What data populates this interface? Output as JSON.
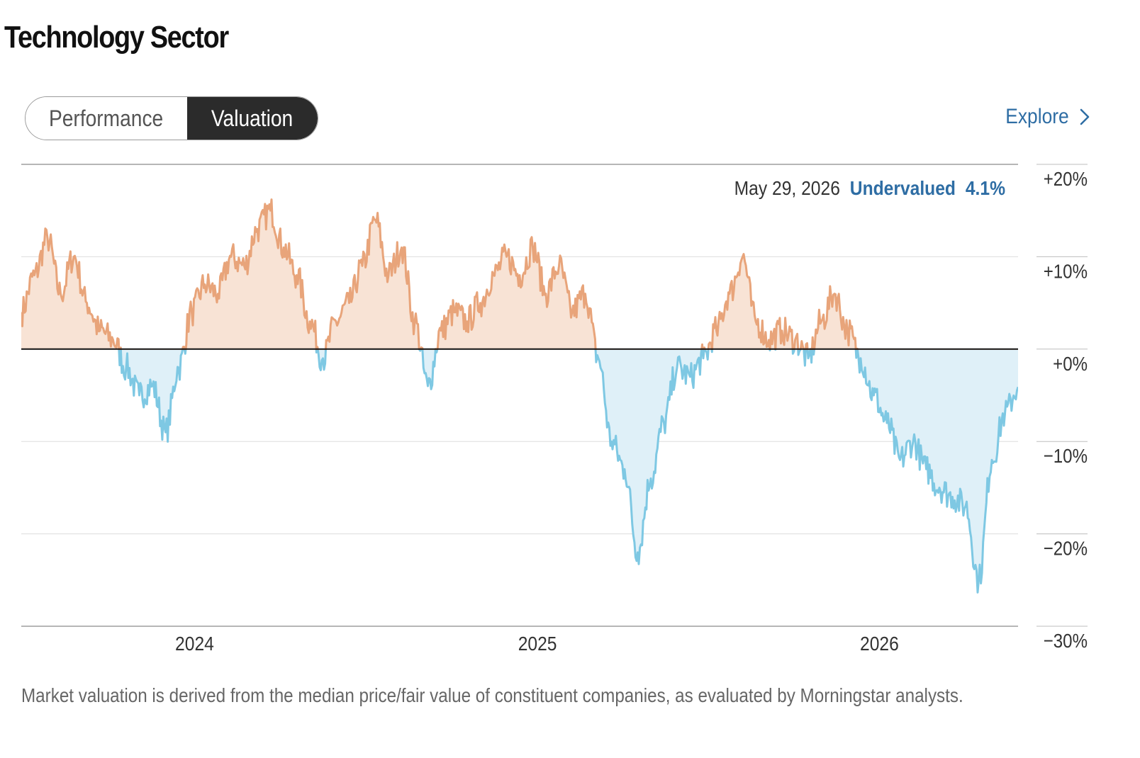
{
  "title": "Technology Sector",
  "tabs": [
    {
      "label": "Performance",
      "active": false
    },
    {
      "label": "Valuation",
      "active": true
    }
  ],
  "explore": {
    "label": "Explore",
    "icon": "chevron-right-icon"
  },
  "caption": "Market valuation is derived from the median price/fair value of constituent companies, as evaluated by Morningstar analysts.",
  "chart_data": {
    "type": "area",
    "title": "",
    "xlabel": "",
    "ylabel": "",
    "ylim": [
      -30,
      20
    ],
    "y_ticks": [
      20,
      10,
      0,
      -10,
      -20,
      -30
    ],
    "y_tick_labels": [
      "+20%",
      "+10%",
      "+0%",
      "−10%",
      "−20%",
      "−30%"
    ],
    "x_tick_labels": [
      {
        "label": "2024",
        "x": "2024-01-01"
      },
      {
        "label": "2025",
        "x": "2025-01-01"
      },
      {
        "label": "2026",
        "x": "2026-01-01"
      }
    ],
    "xlim": [
      "2023-06-30",
      "2026-05-29"
    ],
    "annotation": {
      "date": "May 29, 2026",
      "status": "Undervalued",
      "value": "4.1%"
    },
    "colors": {
      "positive": "#e8a47a",
      "positive_fill": "#f8e3d5",
      "negative": "#7ec8e3",
      "negative_fill": "#dff0f8",
      "annotation": "#2e6da4",
      "zero_line": "#111111"
    },
    "series": [
      {
        "x": [
          "2023-06-30",
          "2023-07-14",
          "2023-07-28",
          "2023-08-11",
          "2023-08-25",
          "2023-09-08",
          "2023-09-22",
          "2023-10-06",
          "2023-10-20",
          "2023-11-03",
          "2023-11-17",
          "2023-12-01",
          "2023-12-15",
          "2023-12-29",
          "2024-01-12",
          "2024-01-26",
          "2024-02-09",
          "2024-02-23",
          "2024-03-08",
          "2024-03-22",
          "2024-04-05",
          "2024-04-19",
          "2024-05-03",
          "2024-05-17",
          "2024-05-31",
          "2024-06-14",
          "2024-06-28",
          "2024-07-12",
          "2024-07-26",
          "2024-08-09",
          "2024-08-23",
          "2024-09-06",
          "2024-09-20",
          "2024-10-04",
          "2024-10-18",
          "2024-11-01",
          "2024-11-15",
          "2024-11-29",
          "2024-12-13",
          "2024-12-27",
          "2025-01-10",
          "2025-01-24",
          "2025-02-07",
          "2025-02-21",
          "2025-03-07",
          "2025-03-21",
          "2025-04-04",
          "2025-04-18",
          "2025-05-02",
          "2025-05-16",
          "2025-05-30",
          "2025-06-13",
          "2025-06-27",
          "2025-07-11",
          "2025-07-25",
          "2025-08-08",
          "2025-08-22",
          "2025-09-05",
          "2025-09-19",
          "2025-10-03",
          "2025-10-17",
          "2025-10-31",
          "2025-11-14",
          "2025-11-28",
          "2025-12-12",
          "2025-12-26",
          "2026-01-09",
          "2026-01-23",
          "2026-02-06",
          "2026-02-20",
          "2026-03-06",
          "2026-03-20",
          "2026-04-03",
          "2026-04-17",
          "2026-05-01",
          "2026-05-15",
          "2026-05-29"
        ],
        "y": [
          4,
          8,
          12,
          6,
          10,
          5,
          2,
          1,
          -2,
          -5,
          -4,
          -9,
          -2,
          4,
          7,
          6,
          10,
          9,
          13,
          15,
          11,
          8,
          3,
          -1,
          3,
          5,
          9,
          14,
          8,
          11,
          3,
          -4,
          2,
          4,
          3,
          5,
          8,
          10,
          8,
          11,
          6,
          9,
          4,
          6,
          -1,
          -10,
          -13,
          -22,
          -14,
          -8,
          -2,
          -3,
          -1,
          2,
          6,
          10,
          3,
          1,
          2,
          1,
          -1,
          3,
          6,
          2,
          -1,
          -5,
          -8,
          -12,
          -10,
          -13,
          -15,
          -16,
          -17,
          -25,
          -12,
          -7,
          -4.1
        ]
      }
    ]
  }
}
